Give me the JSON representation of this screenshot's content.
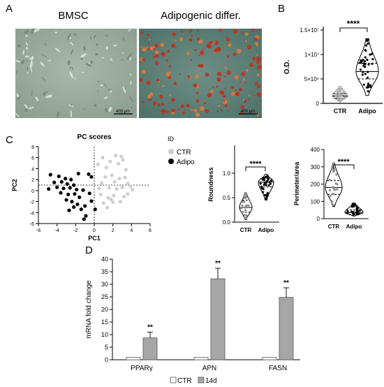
{
  "panels": {
    "a": "A",
    "b": "B",
    "c": "C",
    "d": "D"
  },
  "panel_a": {
    "left_title": "BMSC",
    "right_title": "Adipogenic differ.",
    "left_scale": "400 µm",
    "right_scale": "400 µm"
  },
  "colors": {
    "ctr": "#cfcfcf",
    "adipo": "#000000",
    "bar_14d": "#a6a6a6",
    "bar_ctr": "#ffffff",
    "cells_bg": "#98aa9c",
    "stain": "#c0301c"
  },
  "chart_data": [
    {
      "type": "violin",
      "panel": "B",
      "ylabel": "O.D.",
      "yticks": [
        "0",
        "5×10⁶",
        "1×10⁷",
        "1.5×10⁷"
      ],
      "ylim": [
        0,
        15000000
      ],
      "categories": [
        "CTR",
        "Adipo"
      ],
      "significance": "****",
      "series": [
        {
          "name": "CTR",
          "median": 1500000,
          "q1": 1000000,
          "q3": 2000000,
          "min": 300000,
          "max": 3500000
        },
        {
          "name": "Adipo",
          "median": 6500000,
          "q1": 5000000,
          "q3": 8200000,
          "min": 1600000,
          "max": 13200000
        }
      ]
    },
    {
      "type": "scatter",
      "panel": "C",
      "title": "PC scores",
      "xlabel": "PC1",
      "ylabel": "PC2",
      "xlim": [
        -6,
        6
      ],
      "ylim": [
        -6,
        8
      ],
      "xticks": [
        -6,
        -4,
        -2,
        0,
        2,
        4,
        6
      ],
      "yticks": [
        -6,
        -4,
        -2,
        0,
        2,
        4,
        6,
        8
      ],
      "legend_title": "ID",
      "series": [
        {
          "name": "CTR",
          "points": [
            [
              0.4,
              4.8
            ],
            [
              0.9,
              6.0
            ],
            [
              1.3,
              4.2
            ],
            [
              1.7,
              5.3
            ],
            [
              2.3,
              6.4
            ],
            [
              2.6,
              4.9
            ],
            [
              3.1,
              5.6
            ],
            [
              3.4,
              3.8
            ],
            [
              2.9,
              6.2
            ],
            [
              1.2,
              2.5
            ],
            [
              1.9,
              2.8
            ],
            [
              2.7,
              2.2
            ],
            [
              3.3,
              2.4
            ],
            [
              3.6,
              1.3
            ],
            [
              3.9,
              0.8
            ],
            [
              2.2,
              1.6
            ],
            [
              0.8,
              1.4
            ],
            [
              1.6,
              0.5
            ],
            [
              2.4,
              0.3
            ],
            [
              3.0,
              0.6
            ],
            [
              4.1,
              0.2
            ],
            [
              0.7,
              -0.7
            ],
            [
              1.5,
              -1.3
            ],
            [
              2.1,
              -0.9
            ],
            [
              3.2,
              -1.1
            ],
            [
              1.0,
              -2.3
            ],
            [
              2.0,
              -2.1
            ],
            [
              2.8,
              -2.0
            ],
            [
              1.4,
              -3.1
            ],
            [
              3.6,
              -0.6
            ],
            [
              1.8,
              -1.6
            ],
            [
              0.5,
              0.4
            ]
          ]
        },
        {
          "name": "Adipo",
          "points": [
            [
              -4.7,
              2.9
            ],
            [
              -3.8,
              2.6
            ],
            [
              -3.1,
              2.2
            ],
            [
              -2.5,
              2.0
            ],
            [
              -1.7,
              3.1
            ],
            [
              -0.6,
              3.0
            ],
            [
              -0.3,
              2.5
            ],
            [
              -4.3,
              1.5
            ],
            [
              -3.5,
              1.6
            ],
            [
              -2.9,
              1.2
            ],
            [
              -2.2,
              1.0
            ],
            [
              -4.9,
              0.3
            ],
            [
              -4.0,
              0.6
            ],
            [
              -3.3,
              0.4
            ],
            [
              -2.6,
              0.5
            ],
            [
              -1.9,
              0.2
            ],
            [
              -1.2,
              0.1
            ],
            [
              -3.6,
              -0.4
            ],
            [
              -2.8,
              -0.7
            ],
            [
              -2.1,
              -0.6
            ],
            [
              -1.6,
              -1.2
            ],
            [
              -0.5,
              -0.5
            ],
            [
              -3.0,
              -1.7
            ],
            [
              -2.4,
              -2.0
            ],
            [
              -1.8,
              -2.5
            ],
            [
              -2.2,
              -3.0
            ],
            [
              -1.0,
              -2.8
            ],
            [
              -1.4,
              -3.4
            ],
            [
              -2.7,
              -3.6
            ],
            [
              -0.9,
              -4.6
            ],
            [
              -1.1,
              -5.2
            ],
            [
              -0.3,
              -1.9
            ],
            [
              0.1,
              -3.4
            ]
          ]
        }
      ]
    },
    {
      "type": "violin",
      "panel": "C",
      "ylabel": "Roundness",
      "ylim": [
        0.0,
        1.0
      ],
      "yticks": [
        "0.0",
        "0.5",
        "1.0"
      ],
      "categories": [
        "CTR",
        "Adipo"
      ],
      "significance": "****",
      "series": [
        {
          "name": "CTR",
          "median": 0.3,
          "q1": 0.2,
          "q3": 0.45,
          "min": 0.05,
          "max": 0.6
        },
        {
          "name": "Adipo",
          "median": 0.82,
          "q1": 0.72,
          "q3": 0.9,
          "min": 0.45,
          "max": 0.98
        }
      ]
    },
    {
      "type": "violin",
      "panel": "C",
      "ylabel": "Perimeter/area",
      "ylim": [
        0,
        400
      ],
      "yticks": [
        "0",
        "100",
        "200",
        "300",
        "400"
      ],
      "categories": [
        "CTR",
        "Adipo"
      ],
      "significance": "****",
      "series": [
        {
          "name": "CTR",
          "median": 180,
          "q1": 140,
          "q3": 220,
          "min": 70,
          "max": 320
        },
        {
          "name": "Adipo",
          "median": 35,
          "q1": 25,
          "q3": 50,
          "min": 15,
          "max": 90
        }
      ]
    },
    {
      "type": "bar",
      "panel": "D",
      "ylabel": "mRNA fold change",
      "ylim": [
        0,
        40
      ],
      "yticks": [
        0,
        5,
        10,
        15,
        20,
        25,
        30,
        35,
        40
      ],
      "categories": [
        "PPARγ",
        "APN",
        "FASN"
      ],
      "series": [
        {
          "name": "CTR",
          "values": [
            1,
            1,
            1
          ],
          "errors": [
            0,
            0,
            0
          ]
        },
        {
          "name": "14d",
          "values": [
            8.7,
            32.2,
            24.8
          ],
          "errors": [
            2.3,
            4.2,
            3.8
          ]
        }
      ],
      "annotations": [
        "**",
        "**",
        "**"
      ],
      "legend": "bottom"
    }
  ]
}
